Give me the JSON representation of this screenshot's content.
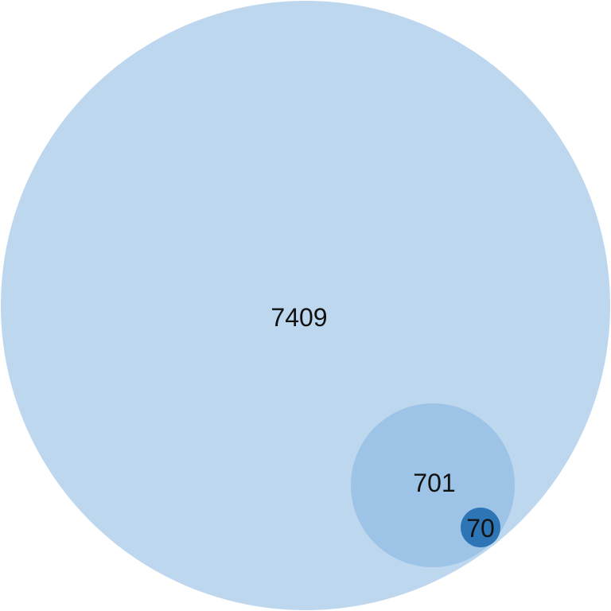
{
  "diagram": {
    "type": "nested-circles",
    "sets": [
      {
        "id": "outer",
        "count": "7409",
        "value": 7409,
        "color": "#bdd7ee"
      },
      {
        "id": "middle",
        "count": "701",
        "value": 701,
        "color": "#9dc3e6"
      },
      {
        "id": "inner",
        "count": "70",
        "value": 70,
        "color": "#2e75b6"
      }
    ]
  }
}
